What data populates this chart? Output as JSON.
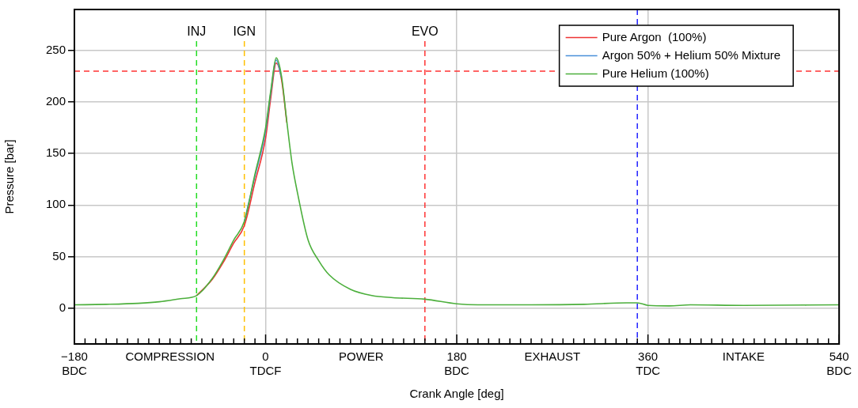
{
  "chart_data": {
    "type": "line",
    "xlabel": "Crank Angle [deg]",
    "ylabel": "Pressure [bar]",
    "xlim": [
      -180,
      540
    ],
    "ylim": [
      -35,
      290
    ],
    "xticks": [
      {
        "value": -180,
        "label": "−180\nBDC"
      },
      {
        "value": -170,
        "label": null
      },
      {
        "value": -160,
        "label": null
      },
      {
        "value": -150,
        "label": null
      },
      {
        "value": -140,
        "label": null
      },
      {
        "value": -130,
        "label": null
      },
      {
        "value": -120,
        "label": null
      },
      {
        "value": -110,
        "label": null
      },
      {
        "value": -100,
        "label": null
      },
      {
        "value": -90,
        "label": "COMPRESSION"
      },
      {
        "value": -80,
        "label": null
      },
      {
        "value": -70,
        "label": null
      },
      {
        "value": -60,
        "label": null
      },
      {
        "value": -50,
        "label": null
      },
      {
        "value": -40,
        "label": null
      },
      {
        "value": -30,
        "label": null
      },
      {
        "value": -20,
        "label": null
      },
      {
        "value": -10,
        "label": null
      },
      {
        "value": 0,
        "label": "0\nTDCF"
      },
      {
        "value": 10,
        "label": null
      },
      {
        "value": 20,
        "label": null
      },
      {
        "value": 30,
        "label": null
      },
      {
        "value": 40,
        "label": null
      },
      {
        "value": 50,
        "label": null
      },
      {
        "value": 60,
        "label": null
      },
      {
        "value": 70,
        "label": null
      },
      {
        "value": 80,
        "label": null
      },
      {
        "value": 90,
        "label": "POWER"
      },
      {
        "value": 100,
        "label": null
      },
      {
        "value": 110,
        "label": null
      },
      {
        "value": 120,
        "label": null
      },
      {
        "value": 130,
        "label": null
      },
      {
        "value": 140,
        "label": null
      },
      {
        "value": 150,
        "label": null
      },
      {
        "value": 160,
        "label": null
      },
      {
        "value": 170,
        "label": null
      },
      {
        "value": 180,
        "label": "180\nBDC"
      },
      {
        "value": 190,
        "label": null
      },
      {
        "value": 200,
        "label": null
      },
      {
        "value": 210,
        "label": null
      },
      {
        "value": 220,
        "label": null
      },
      {
        "value": 230,
        "label": null
      },
      {
        "value": 240,
        "label": null
      },
      {
        "value": 250,
        "label": null
      },
      {
        "value": 260,
        "label": null
      },
      {
        "value": 270,
        "label": "EXHAUST"
      },
      {
        "value": 280,
        "label": null
      },
      {
        "value": 290,
        "label": null
      },
      {
        "value": 300,
        "label": null
      },
      {
        "value": 310,
        "label": null
      },
      {
        "value": 320,
        "label": null
      },
      {
        "value": 330,
        "label": null
      },
      {
        "value": 340,
        "label": null
      },
      {
        "value": 350,
        "label": null
      },
      {
        "value": 360,
        "label": "360\nTDC"
      },
      {
        "value": 370,
        "label": null
      },
      {
        "value": 380,
        "label": null
      },
      {
        "value": 390,
        "label": null
      },
      {
        "value": 400,
        "label": null
      },
      {
        "value": 410,
        "label": null
      },
      {
        "value": 420,
        "label": null
      },
      {
        "value": 430,
        "label": null
      },
      {
        "value": 440,
        "label": null
      },
      {
        "value": 450,
        "label": "INTAKE"
      },
      {
        "value": 460,
        "label": null
      },
      {
        "value": 470,
        "label": null
      },
      {
        "value": 480,
        "label": null
      },
      {
        "value": 490,
        "label": null
      },
      {
        "value": 500,
        "label": null
      },
      {
        "value": 510,
        "label": null
      },
      {
        "value": 520,
        "label": null
      },
      {
        "value": 530,
        "label": null
      },
      {
        "value": 540,
        "label": "540\nBDC"
      }
    ],
    "yticks": [
      0,
      50,
      100,
      150,
      200,
      250
    ],
    "x": [
      -180,
      -150,
      -120,
      -100,
      -80,
      -65,
      -50,
      -40,
      -30,
      -20,
      -10,
      0,
      5,
      10,
      15,
      20,
      25,
      30,
      40,
      50,
      60,
      80,
      100,
      120,
      150,
      180,
      200,
      250,
      300,
      340,
      350,
      360,
      380,
      400,
      450,
      540
    ],
    "series": [
      {
        "name": "Pure Argon  (100%)",
        "color": "#ee3333",
        "values": [
          null,
          null,
          null,
          null,
          null,
          12,
          28,
          44,
          63,
          80,
          122,
          165,
          205,
          238,
          222,
          180,
          null,
          null,
          null,
          null,
          null,
          null,
          null,
          null,
          null,
          null,
          null,
          null,
          null,
          null,
          null,
          null,
          null,
          null,
          null,
          null
        ]
      },
      {
        "name": "Argon 50% + Helium 50% Mixture",
        "color": "#4a90d9",
        "values": [
          null,
          null,
          null,
          null,
          null,
          null,
          null,
          null,
          null,
          84,
          128,
          172,
          210,
          241,
          224,
          null,
          null,
          null,
          null,
          null,
          null,
          null,
          null,
          null,
          null,
          null,
          null,
          null,
          null,
          null,
          null,
          null,
          null,
          null,
          null,
          null
        ]
      },
      {
        "name": "Pure Helium (100%)",
        "color": "#4caf3c",
        "values": [
          3,
          3.5,
          4.5,
          6,
          9,
          12,
          29,
          46,
          66,
          84,
          130,
          175,
          212,
          243,
          225,
          181,
          140,
          112,
          66,
          46,
          32,
          18,
          12,
          10,
          8.5,
          4,
          3,
          3,
          3.5,
          5,
          5,
          2.5,
          2,
          3,
          2.5,
          3
        ]
      }
    ],
    "ref_lines": [
      {
        "axis": "x",
        "value": -65,
        "label": "INJ",
        "color": "#22dd22",
        "line_style": "dashed"
      },
      {
        "axis": "x",
        "value": -20,
        "label": "IGN",
        "color": "#ffc000",
        "line_style": "dashed"
      },
      {
        "axis": "x",
        "value": 150,
        "label": "EVO",
        "color": "#ff3333",
        "line_style": "dashed"
      },
      {
        "axis": "x",
        "value": 350,
        "color": "#2222ff",
        "line_style": "dashed"
      },
      {
        "axis": "y",
        "value": 230,
        "color": "#ff3333",
        "line_style": "dashed"
      }
    ],
    "grid": true,
    "legend": "top right",
    "marker": "none",
    "line_style": "solid"
  }
}
